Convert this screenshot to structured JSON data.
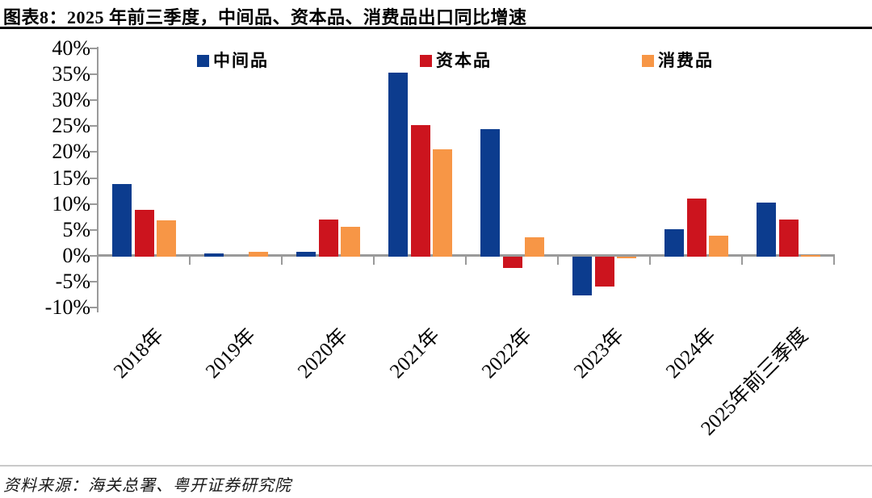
{
  "title": "图表8：2025 年前三季度，中间品、资本品、消费品出口同比增速",
  "source": "资料来源：海关总署、粤开证券研究院",
  "colors": {
    "axis": "#9a9a9a",
    "title_rule": "#000000",
    "footer_rule": "#c9c9c9",
    "series_blue": "#0C3C8E",
    "series_red": "#CC141E",
    "series_orange": "#F79646"
  },
  "chart_data": {
    "type": "bar",
    "title": "图表8：2025 年前三季度，中间品、资本品、消费品出口同比增速",
    "categories": [
      "2018年",
      "2019年",
      "2020年",
      "2021年",
      "2022年",
      "2023年",
      "2024年",
      "2025年前三季度"
    ],
    "series": [
      {
        "name": "中间品",
        "color": "#0C3C8E",
        "values": [
          13.8,
          0.4,
          0.7,
          35.3,
          24.4,
          -7.5,
          5.1,
          10.3
        ]
      },
      {
        "name": "资本品",
        "color": "#CC141E",
        "values": [
          8.9,
          0.0,
          7.0,
          25.2,
          -2.2,
          -5.7,
          11.0,
          7.0
        ]
      },
      {
        "name": "消费品",
        "color": "#F79646",
        "values": [
          6.8,
          0.7,
          5.5,
          20.6,
          3.6,
          -0.3,
          3.9,
          0.1
        ]
      }
    ],
    "xlabel": "",
    "ylabel": "",
    "ylim": [
      -10,
      40
    ],
    "ytick_step": 5,
    "ytick_labels": [
      "40%",
      "35%",
      "30%",
      "25%",
      "20%",
      "15%",
      "10%",
      "5%",
      "0%",
      "-5%",
      "-10%"
    ],
    "grid": false,
    "legend_position": "top",
    "value_unit": "percent"
  }
}
